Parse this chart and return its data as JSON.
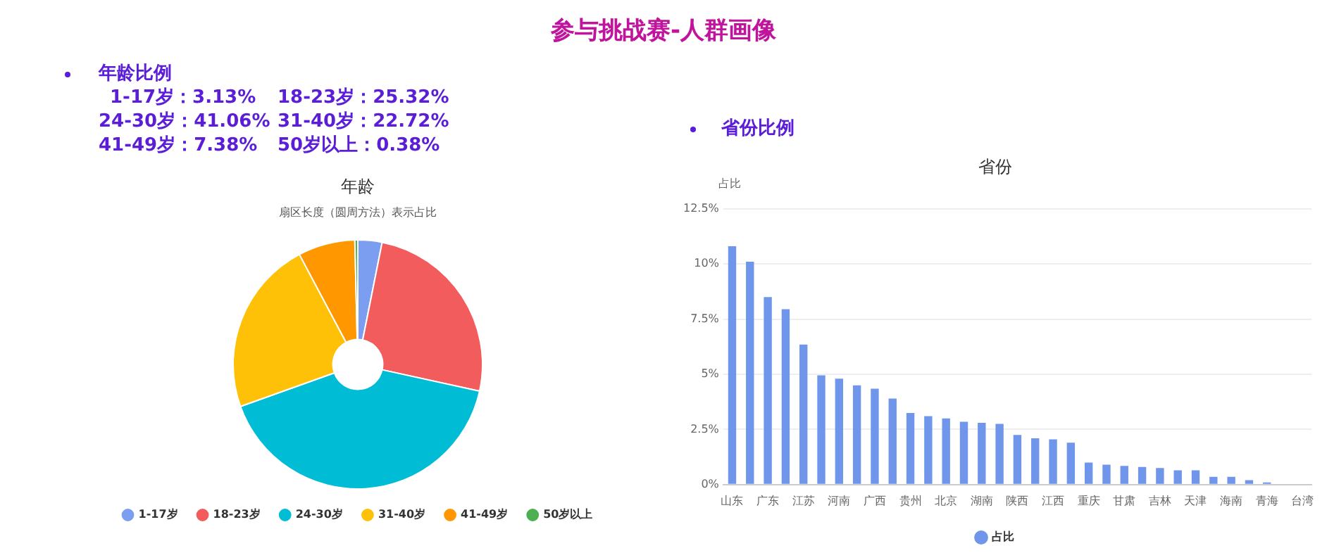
{
  "chart_data": [
    {
      "type": "donut",
      "title": "年龄",
      "subtitle": "扇区长度（圆周方法）表示占比",
      "categories": [
        "1-17岁",
        "18-23岁",
        "24-30岁",
        "31-40岁",
        "41-49岁",
        "50岁以上"
      ],
      "values": [
        3.13,
        25.32,
        41.06,
        22.72,
        7.38,
        0.38
      ],
      "colors": [
        "#7b9ef0",
        "#f25c5c",
        "#00bcd4",
        "#ffc107",
        "#ff9800",
        "#4caf50"
      ],
      "legend": "bottom",
      "annotations": [
        "参与挑战赛-人群画像",
        "年龄比例",
        "1-17岁：3.13%",
        "18-23岁：25.32%",
        "24-30岁：41.06%",
        "31-40岁：22.72%",
        "41-49岁：7.38%",
        "50岁以上：0.38%"
      ]
    },
    {
      "type": "bar",
      "title": "省份",
      "ylabel": "占比",
      "annotations": [
        "省份比例"
      ],
      "categories": [
        "山东",
        null,
        "广东",
        null,
        "江苏",
        null,
        "河南",
        null,
        "广西",
        null,
        "贵州",
        null,
        "北京",
        null,
        "湖南",
        null,
        "陕西",
        null,
        "江西",
        null,
        "重庆",
        null,
        "甘肃",
        null,
        "吉林",
        null,
        "天津",
        null,
        "海南",
        null,
        "青海",
        null,
        "台湾"
      ],
      "series": [
        {
          "name": "占比",
          "color": "#6f96ea",
          "values": [
            10.8,
            10.1,
            8.5,
            7.95,
            6.35,
            4.95,
            4.8,
            4.5,
            4.35,
            3.9,
            3.25,
            3.1,
            3.0,
            2.85,
            2.8,
            2.75,
            2.25,
            2.1,
            2.05,
            1.9,
            1.0,
            0.9,
            0.85,
            0.8,
            0.75,
            0.65,
            0.65,
            0.35,
            0.35,
            0.2,
            0.1,
            null,
            null
          ]
        }
      ],
      "ylim": [
        0,
        12.5
      ],
      "yticks": [
        {
          "value": 0,
          "label": "0%"
        },
        {
          "value": 2.5,
          "label": "2.5%"
        },
        {
          "value": 5,
          "label": "5%"
        },
        {
          "value": 7.5,
          "label": "7.5%"
        },
        {
          "value": 10,
          "label": "10%"
        },
        {
          "value": 12.5,
          "label": "12.5%"
        }
      ],
      "grid": "y",
      "legend": "bottom"
    }
  ]
}
